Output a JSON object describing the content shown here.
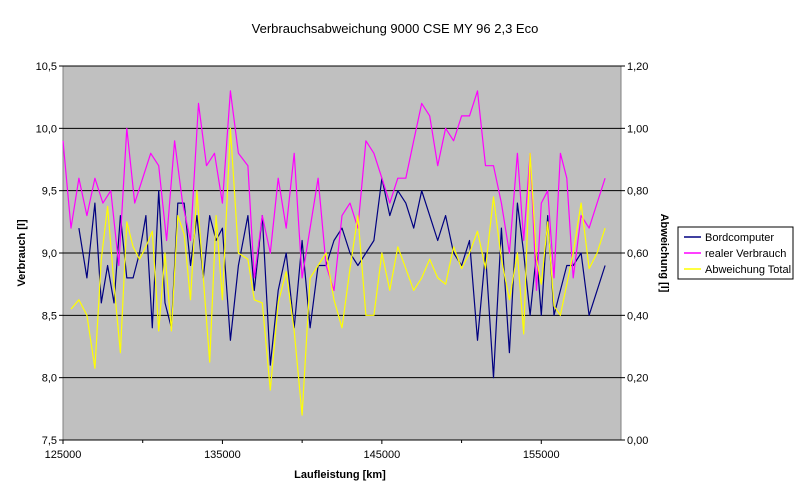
{
  "chart_data": {
    "type": "line",
    "title": "Verbrauchsabweichung 9000 CSE MY 96 2,3 Eco",
    "xlabel": "Laufleistung [km]",
    "ylabel": "Verbrauch [l]",
    "y2label": "Abweichung [l]",
    "xlim": [
      125000,
      160000
    ],
    "ylim": [
      7.5,
      10.5
    ],
    "y2lim": [
      0.0,
      1.2
    ],
    "x_ticks": [
      "125000",
      "135000",
      "145000",
      "155000"
    ],
    "y_ticks": [
      "10,5",
      "10,0",
      "9,5",
      "9,0",
      "8,5",
      "8,0",
      "7,5"
    ],
    "y2_ticks": [
      "1,20",
      "1,00",
      "0,80",
      "0,60",
      "0,40",
      "0,20",
      "0,00"
    ],
    "grid": true,
    "legend_position": "right",
    "plot_background": "#c0c0c0",
    "series": [
      {
        "name": "Bordcomputer",
        "axis": "left",
        "color": "#000080",
        "x": [
          126000,
          126500,
          127000,
          127400,
          127800,
          128200,
          128600,
          129000,
          129400,
          129800,
          130200,
          130600,
          131000,
          131400,
          131800,
          132200,
          132600,
          133000,
          133400,
          133800,
          134200,
          134600,
          135000,
          135500,
          136000,
          136600,
          137000,
          137500,
          138000,
          138500,
          139000,
          139500,
          140000,
          140500,
          141000,
          141500,
          142000,
          142500,
          143000,
          143500,
          144000,
          144500,
          145000,
          145500,
          146000,
          146500,
          147000,
          147500,
          148000,
          148500,
          149000,
          149500,
          150000,
          150500,
          151000,
          151500,
          152000,
          152500,
          153000,
          153500,
          153900,
          154300,
          154700,
          155000,
          155400,
          155800,
          156200,
          156600,
          157000,
          157500,
          158000,
          158500,
          159000
        ],
        "values": [
          9.2,
          8.8,
          9.4,
          8.6,
          8.9,
          8.6,
          9.3,
          8.8,
          8.8,
          9.0,
          9.3,
          8.4,
          9.5,
          8.6,
          8.4,
          9.4,
          9.4,
          8.9,
          9.3,
          8.8,
          9.3,
          9.1,
          9.2,
          8.3,
          8.9,
          9.3,
          8.7,
          9.3,
          8.1,
          8.7,
          9.0,
          8.4,
          9.1,
          8.4,
          8.9,
          8.9,
          9.1,
          9.2,
          9.0,
          8.9,
          9.0,
          9.1,
          9.6,
          9.3,
          9.5,
          9.4,
          9.2,
          9.5,
          9.3,
          9.1,
          9.3,
          9.0,
          8.9,
          9.1,
          8.3,
          9.0,
          8.0,
          9.2,
          8.2,
          9.4,
          9.0,
          8.5,
          9.0,
          8.5,
          9.3,
          8.5,
          8.7,
          8.9,
          8.9,
          9.0,
          8.5,
          8.7,
          8.9
        ]
      },
      {
        "name": "realer Verbrauch",
        "axis": "left",
        "color": "#ff00ff",
        "x": [
          125000,
          125500,
          126000,
          126500,
          127000,
          127500,
          128000,
          128500,
          129000,
          129500,
          130000,
          130500,
          131000,
          131500,
          132000,
          132500,
          133000,
          133500,
          134000,
          134500,
          135000,
          135500,
          136000,
          136600,
          137000,
          137500,
          138000,
          138500,
          139000,
          139500,
          140000,
          140500,
          141000,
          141500,
          142000,
          142500,
          143000,
          143500,
          144000,
          144500,
          145000,
          145500,
          146000,
          146500,
          147000,
          147500,
          148000,
          148500,
          149000,
          149500,
          150000,
          150500,
          151000,
          151500,
          152000,
          152500,
          153000,
          153500,
          153900,
          154300,
          154700,
          155000,
          155400,
          155800,
          156200,
          156600,
          157000,
          157500,
          158000,
          158500,
          159000
        ],
        "values": [
          9.9,
          9.2,
          9.6,
          9.3,
          9.6,
          9.4,
          9.5,
          8.9,
          10.0,
          9.4,
          9.6,
          9.8,
          9.7,
          9.1,
          9.9,
          9.4,
          9.1,
          10.2,
          9.7,
          9.8,
          9.4,
          10.3,
          9.8,
          9.7,
          8.8,
          9.3,
          9.0,
          9.6,
          9.2,
          9.8,
          8.8,
          9.2,
          9.6,
          8.9,
          8.7,
          9.3,
          9.4,
          9.2,
          9.9,
          9.8,
          9.6,
          9.4,
          9.6,
          9.6,
          9.9,
          10.2,
          10.1,
          9.7,
          10.0,
          9.9,
          10.1,
          10.1,
          10.3,
          9.7,
          9.7,
          9.4,
          9.0,
          9.8,
          9.1,
          9.8,
          8.7,
          9.4,
          9.5,
          8.8,
          9.8,
          9.6,
          8.8,
          9.3,
          9.2,
          9.4,
          9.6
        ]
      },
      {
        "name": "Abweichung Total",
        "axis": "right",
        "color": "#ffff00",
        "x": [
          125500,
          126000,
          126500,
          127000,
          127400,
          127800,
          128200,
          128600,
          129000,
          129400,
          129800,
          130200,
          130600,
          131000,
          131400,
          131800,
          132200,
          132600,
          133000,
          133400,
          133800,
          134200,
          134600,
          135000,
          135500,
          136000,
          136600,
          137000,
          137500,
          138000,
          138500,
          139000,
          139500,
          140000,
          140500,
          141000,
          141500,
          142000,
          142500,
          143000,
          143500,
          144000,
          144500,
          145000,
          145500,
          146000,
          146500,
          147000,
          147500,
          148000,
          148500,
          149000,
          149500,
          150000,
          150500,
          151000,
          151500,
          152000,
          152500,
          153000,
          153500,
          153900,
          154300,
          154700,
          155000,
          155400,
          155800,
          156200,
          156600,
          157000,
          157500,
          158000,
          158500,
          159000
        ],
        "values": [
          0.42,
          0.45,
          0.4,
          0.23,
          0.58,
          0.75,
          0.5,
          0.28,
          0.7,
          0.62,
          0.58,
          0.62,
          0.67,
          0.35,
          0.6,
          0.35,
          0.72,
          0.66,
          0.45,
          0.8,
          0.52,
          0.25,
          0.72,
          0.45,
          1.0,
          0.6,
          0.58,
          0.45,
          0.44,
          0.16,
          0.44,
          0.54,
          0.35,
          0.08,
          0.52,
          0.56,
          0.6,
          0.45,
          0.36,
          0.55,
          0.72,
          0.4,
          0.4,
          0.6,
          0.48,
          0.62,
          0.55,
          0.48,
          0.52,
          0.58,
          0.52,
          0.5,
          0.62,
          0.55,
          0.6,
          0.67,
          0.55,
          0.78,
          0.58,
          0.45,
          0.6,
          0.34,
          0.92,
          0.58,
          0.5,
          0.7,
          0.43,
          0.4,
          0.5,
          0.6,
          0.76,
          0.55,
          0.6,
          0.68
        ]
      }
    ]
  }
}
